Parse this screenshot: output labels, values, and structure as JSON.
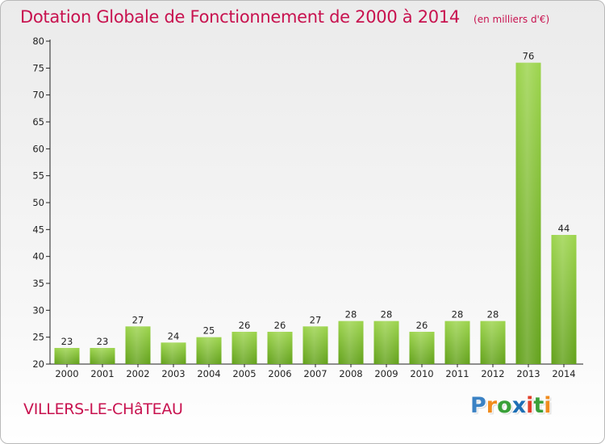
{
  "title": "Dotation Globale de Fonctionnement de 2000 à 2014",
  "unit": "(en milliers d'€)",
  "place": "VILLERS-LE-CHâTEAU",
  "logo": {
    "text": "Proxiti",
    "letters": [
      "P",
      "r",
      "o",
      "x",
      "i",
      "t",
      "i"
    ],
    "colors": [
      "#3b82c4",
      "#f08c1e",
      "#3aa039",
      "#1e6fb5",
      "#e23f2a",
      "#3aa039",
      "#f08c1e"
    ]
  },
  "colors": {
    "title": "#c8124f",
    "bar_light": "#9cd44c",
    "bar_dark": "#62a11a"
  },
  "chart_data": {
    "type": "bar",
    "title": "Dotation Globale de Fonctionnement de 2000 à 2014",
    "xlabel": "",
    "ylabel": "",
    "ylim": [
      20,
      80
    ],
    "yticks": [
      20,
      25,
      30,
      35,
      40,
      45,
      50,
      55,
      60,
      65,
      70,
      75,
      80
    ],
    "grid": false,
    "categories": [
      "2000",
      "2001",
      "2002",
      "2003",
      "2004",
      "2005",
      "2006",
      "2007",
      "2008",
      "2009",
      "2010",
      "2011",
      "2012",
      "2013",
      "2014"
    ],
    "values": [
      23,
      23,
      27,
      24,
      25,
      26,
      26,
      27,
      28,
      28,
      26,
      28,
      28,
      76,
      44
    ]
  }
}
